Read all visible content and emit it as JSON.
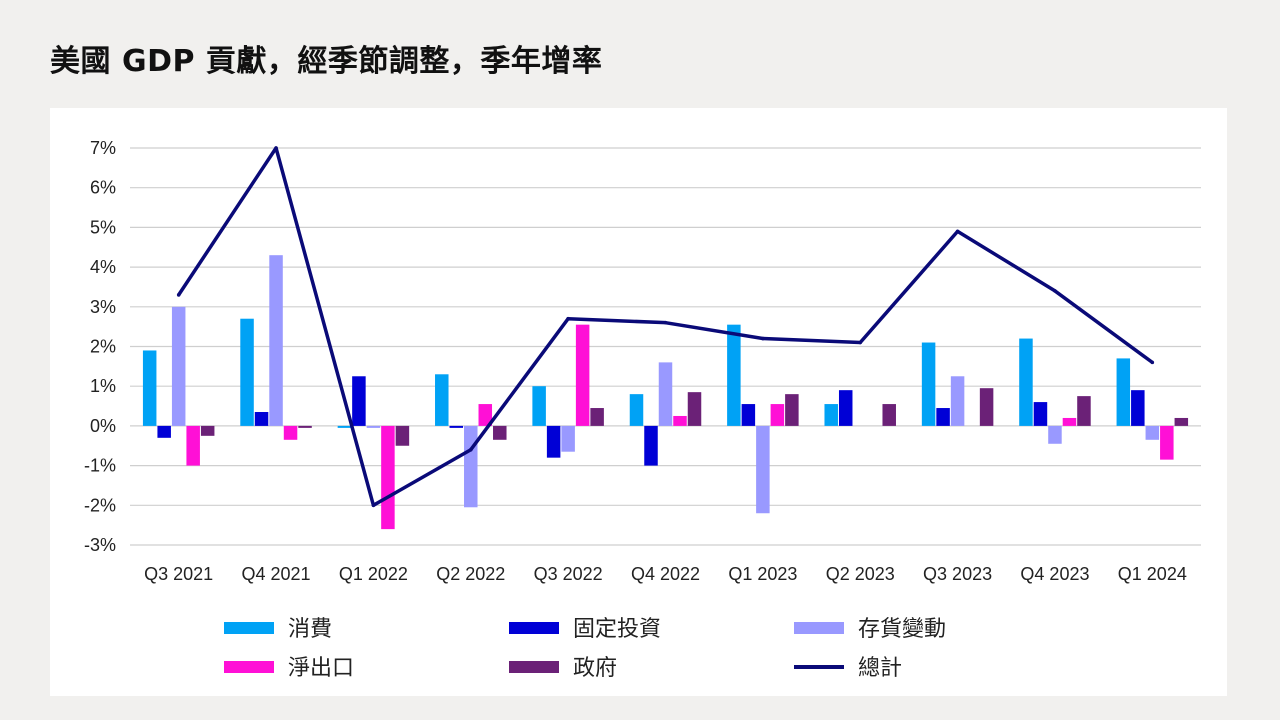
{
  "title": "美國 GDP 貢獻，經季節調整，季年增率",
  "chart_data": {
    "type": "bar",
    "title": "美國 GDP 貢獻，經季節調整，季年增率",
    "xlabel": "",
    "ylabel": "",
    "ylim": [
      -3,
      7
    ],
    "yticks": [
      -3,
      -2,
      -1,
      0,
      1,
      2,
      3,
      4,
      5,
      6,
      7
    ],
    "ytick_labels": [
      "-3%",
      "-2%",
      "-1%",
      "0%",
      "1%",
      "2%",
      "3%",
      "4%",
      "5%",
      "6%",
      "7%"
    ],
    "grid": true,
    "legend_position": "bottom",
    "categories": [
      "Q3 2021",
      "Q4 2021",
      "Q1 2022",
      "Q2 2022",
      "Q3 2022",
      "Q4 2022",
      "Q1 2023",
      "Q2 2023",
      "Q3 2023",
      "Q4 2023",
      "Q1 2024"
    ],
    "series": [
      {
        "name": "消費",
        "kind": "bar",
        "color": "#00a2f5",
        "values": [
          1.9,
          2.7,
          -0.05,
          1.3,
          1.0,
          0.8,
          2.55,
          0.55,
          2.1,
          2.2,
          1.7
        ]
      },
      {
        "name": "固定投資",
        "kind": "bar",
        "color": "#0000d6",
        "values": [
          -0.3,
          0.35,
          1.25,
          -0.05,
          -0.8,
          -1.0,
          0.55,
          0.9,
          0.45,
          0.6,
          0.9
        ]
      },
      {
        "name": "存貨變動",
        "kind": "bar",
        "color": "#9999ff",
        "values": [
          3.0,
          4.3,
          -0.05,
          -2.05,
          -0.65,
          1.6,
          -2.2,
          0.0,
          1.25,
          -0.45,
          -0.35
        ]
      },
      {
        "name": "淨出口",
        "kind": "bar",
        "color": "#ff10d6",
        "values": [
          -1.0,
          -0.35,
          -2.6,
          0.55,
          2.55,
          0.25,
          0.55,
          0.0,
          0.0,
          0.2,
          -0.85
        ]
      },
      {
        "name": "政府",
        "kind": "bar",
        "color": "#6b2177",
        "values": [
          -0.25,
          -0.05,
          -0.5,
          -0.35,
          0.45,
          0.85,
          0.8,
          0.55,
          0.95,
          0.75,
          0.2
        ]
      },
      {
        "name": "總計",
        "kind": "line",
        "color": "#0a0a78",
        "values": [
          3.3,
          7.0,
          -2.0,
          -0.6,
          2.7,
          2.6,
          2.2,
          2.1,
          4.9,
          3.4,
          1.6
        ]
      }
    ]
  }
}
